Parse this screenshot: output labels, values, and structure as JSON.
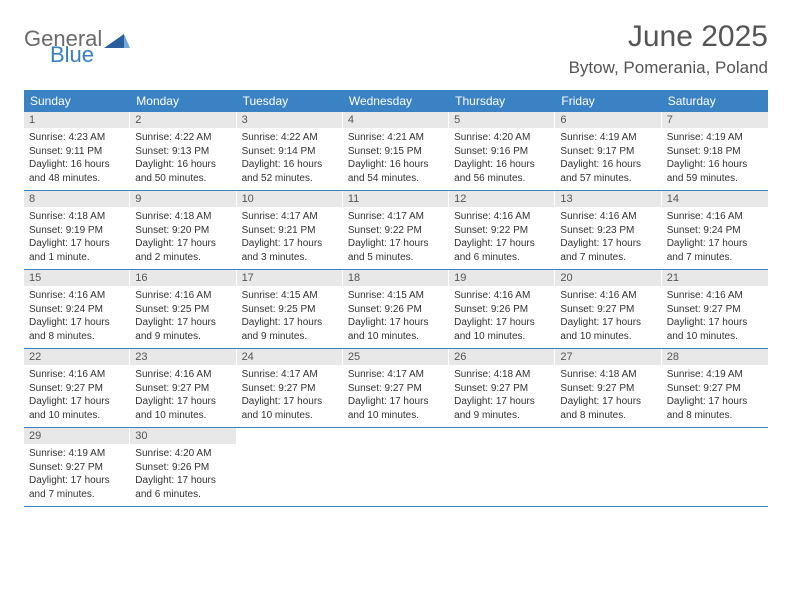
{
  "logo": {
    "text1": "General",
    "text2": "Blue"
  },
  "title": "June 2025",
  "location": "Bytow, Pomerania, Poland",
  "colors": {
    "header_bg": "#3a82c4",
    "daynum_bg": "#e8e8e8",
    "row_border": "#3a82c4",
    "logo_gray": "#6b6b6b",
    "logo_blue": "#3a7fc4"
  },
  "weekdays": [
    "Sunday",
    "Monday",
    "Tuesday",
    "Wednesday",
    "Thursday",
    "Friday",
    "Saturday"
  ],
  "weeks": [
    [
      {
        "n": "1",
        "sr": "Sunrise: 4:23 AM",
        "ss": "Sunset: 9:11 PM",
        "d1": "Daylight: 16 hours",
        "d2": "and 48 minutes."
      },
      {
        "n": "2",
        "sr": "Sunrise: 4:22 AM",
        "ss": "Sunset: 9:13 PM",
        "d1": "Daylight: 16 hours",
        "d2": "and 50 minutes."
      },
      {
        "n": "3",
        "sr": "Sunrise: 4:22 AM",
        "ss": "Sunset: 9:14 PM",
        "d1": "Daylight: 16 hours",
        "d2": "and 52 minutes."
      },
      {
        "n": "4",
        "sr": "Sunrise: 4:21 AM",
        "ss": "Sunset: 9:15 PM",
        "d1": "Daylight: 16 hours",
        "d2": "and 54 minutes."
      },
      {
        "n": "5",
        "sr": "Sunrise: 4:20 AM",
        "ss": "Sunset: 9:16 PM",
        "d1": "Daylight: 16 hours",
        "d2": "and 56 minutes."
      },
      {
        "n": "6",
        "sr": "Sunrise: 4:19 AM",
        "ss": "Sunset: 9:17 PM",
        "d1": "Daylight: 16 hours",
        "d2": "and 57 minutes."
      },
      {
        "n": "7",
        "sr": "Sunrise: 4:19 AM",
        "ss": "Sunset: 9:18 PM",
        "d1": "Daylight: 16 hours",
        "d2": "and 59 minutes."
      }
    ],
    [
      {
        "n": "8",
        "sr": "Sunrise: 4:18 AM",
        "ss": "Sunset: 9:19 PM",
        "d1": "Daylight: 17 hours",
        "d2": "and 1 minute."
      },
      {
        "n": "9",
        "sr": "Sunrise: 4:18 AM",
        "ss": "Sunset: 9:20 PM",
        "d1": "Daylight: 17 hours",
        "d2": "and 2 minutes."
      },
      {
        "n": "10",
        "sr": "Sunrise: 4:17 AM",
        "ss": "Sunset: 9:21 PM",
        "d1": "Daylight: 17 hours",
        "d2": "and 3 minutes."
      },
      {
        "n": "11",
        "sr": "Sunrise: 4:17 AM",
        "ss": "Sunset: 9:22 PM",
        "d1": "Daylight: 17 hours",
        "d2": "and 5 minutes."
      },
      {
        "n": "12",
        "sr": "Sunrise: 4:16 AM",
        "ss": "Sunset: 9:22 PM",
        "d1": "Daylight: 17 hours",
        "d2": "and 6 minutes."
      },
      {
        "n": "13",
        "sr": "Sunrise: 4:16 AM",
        "ss": "Sunset: 9:23 PM",
        "d1": "Daylight: 17 hours",
        "d2": "and 7 minutes."
      },
      {
        "n": "14",
        "sr": "Sunrise: 4:16 AM",
        "ss": "Sunset: 9:24 PM",
        "d1": "Daylight: 17 hours",
        "d2": "and 7 minutes."
      }
    ],
    [
      {
        "n": "15",
        "sr": "Sunrise: 4:16 AM",
        "ss": "Sunset: 9:24 PM",
        "d1": "Daylight: 17 hours",
        "d2": "and 8 minutes."
      },
      {
        "n": "16",
        "sr": "Sunrise: 4:16 AM",
        "ss": "Sunset: 9:25 PM",
        "d1": "Daylight: 17 hours",
        "d2": "and 9 minutes."
      },
      {
        "n": "17",
        "sr": "Sunrise: 4:15 AM",
        "ss": "Sunset: 9:25 PM",
        "d1": "Daylight: 17 hours",
        "d2": "and 9 minutes."
      },
      {
        "n": "18",
        "sr": "Sunrise: 4:15 AM",
        "ss": "Sunset: 9:26 PM",
        "d1": "Daylight: 17 hours",
        "d2": "and 10 minutes."
      },
      {
        "n": "19",
        "sr": "Sunrise: 4:16 AM",
        "ss": "Sunset: 9:26 PM",
        "d1": "Daylight: 17 hours",
        "d2": "and 10 minutes."
      },
      {
        "n": "20",
        "sr": "Sunrise: 4:16 AM",
        "ss": "Sunset: 9:27 PM",
        "d1": "Daylight: 17 hours",
        "d2": "and 10 minutes."
      },
      {
        "n": "21",
        "sr": "Sunrise: 4:16 AM",
        "ss": "Sunset: 9:27 PM",
        "d1": "Daylight: 17 hours",
        "d2": "and 10 minutes."
      }
    ],
    [
      {
        "n": "22",
        "sr": "Sunrise: 4:16 AM",
        "ss": "Sunset: 9:27 PM",
        "d1": "Daylight: 17 hours",
        "d2": "and 10 minutes."
      },
      {
        "n": "23",
        "sr": "Sunrise: 4:16 AM",
        "ss": "Sunset: 9:27 PM",
        "d1": "Daylight: 17 hours",
        "d2": "and 10 minutes."
      },
      {
        "n": "24",
        "sr": "Sunrise: 4:17 AM",
        "ss": "Sunset: 9:27 PM",
        "d1": "Daylight: 17 hours",
        "d2": "and 10 minutes."
      },
      {
        "n": "25",
        "sr": "Sunrise: 4:17 AM",
        "ss": "Sunset: 9:27 PM",
        "d1": "Daylight: 17 hours",
        "d2": "and 10 minutes."
      },
      {
        "n": "26",
        "sr": "Sunrise: 4:18 AM",
        "ss": "Sunset: 9:27 PM",
        "d1": "Daylight: 17 hours",
        "d2": "and 9 minutes."
      },
      {
        "n": "27",
        "sr": "Sunrise: 4:18 AM",
        "ss": "Sunset: 9:27 PM",
        "d1": "Daylight: 17 hours",
        "d2": "and 8 minutes."
      },
      {
        "n": "28",
        "sr": "Sunrise: 4:19 AM",
        "ss": "Sunset: 9:27 PM",
        "d1": "Daylight: 17 hours",
        "d2": "and 8 minutes."
      }
    ],
    [
      {
        "n": "29",
        "sr": "Sunrise: 4:19 AM",
        "ss": "Sunset: 9:27 PM",
        "d1": "Daylight: 17 hours",
        "d2": "and 7 minutes."
      },
      {
        "n": "30",
        "sr": "Sunrise: 4:20 AM",
        "ss": "Sunset: 9:26 PM",
        "d1": "Daylight: 17 hours",
        "d2": "and 6 minutes."
      },
      {
        "empty": true
      },
      {
        "empty": true
      },
      {
        "empty": true
      },
      {
        "empty": true
      },
      {
        "empty": true
      }
    ]
  ]
}
